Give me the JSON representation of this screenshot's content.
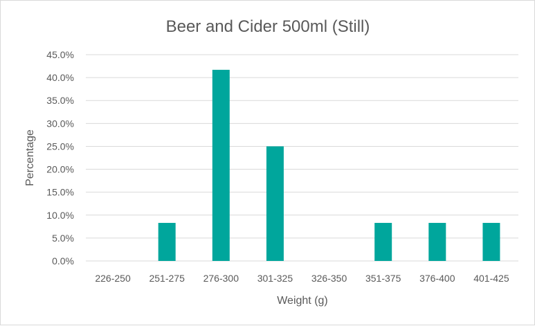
{
  "chart_data": {
    "type": "bar",
    "title": "Beer and Cider 500ml (Still)",
    "xlabel": "Weight (g)",
    "ylabel": "Percentage",
    "categories": [
      "226-250",
      "251-275",
      "276-300",
      "301-325",
      "326-350",
      "351-375",
      "376-400",
      "401-425"
    ],
    "values": [
      0.0,
      8.3,
      41.7,
      25.0,
      0.0,
      8.3,
      8.3,
      8.3
    ],
    "ylim": [
      0,
      45
    ],
    "yticks": [
      "0.0%",
      "5.0%",
      "10.0%",
      "15.0%",
      "20.0%",
      "25.0%",
      "30.0%",
      "35.0%",
      "40.0%",
      "45.0%"
    ],
    "grid": true,
    "legend": "none",
    "colors": {
      "bar": "#00a69c"
    }
  }
}
